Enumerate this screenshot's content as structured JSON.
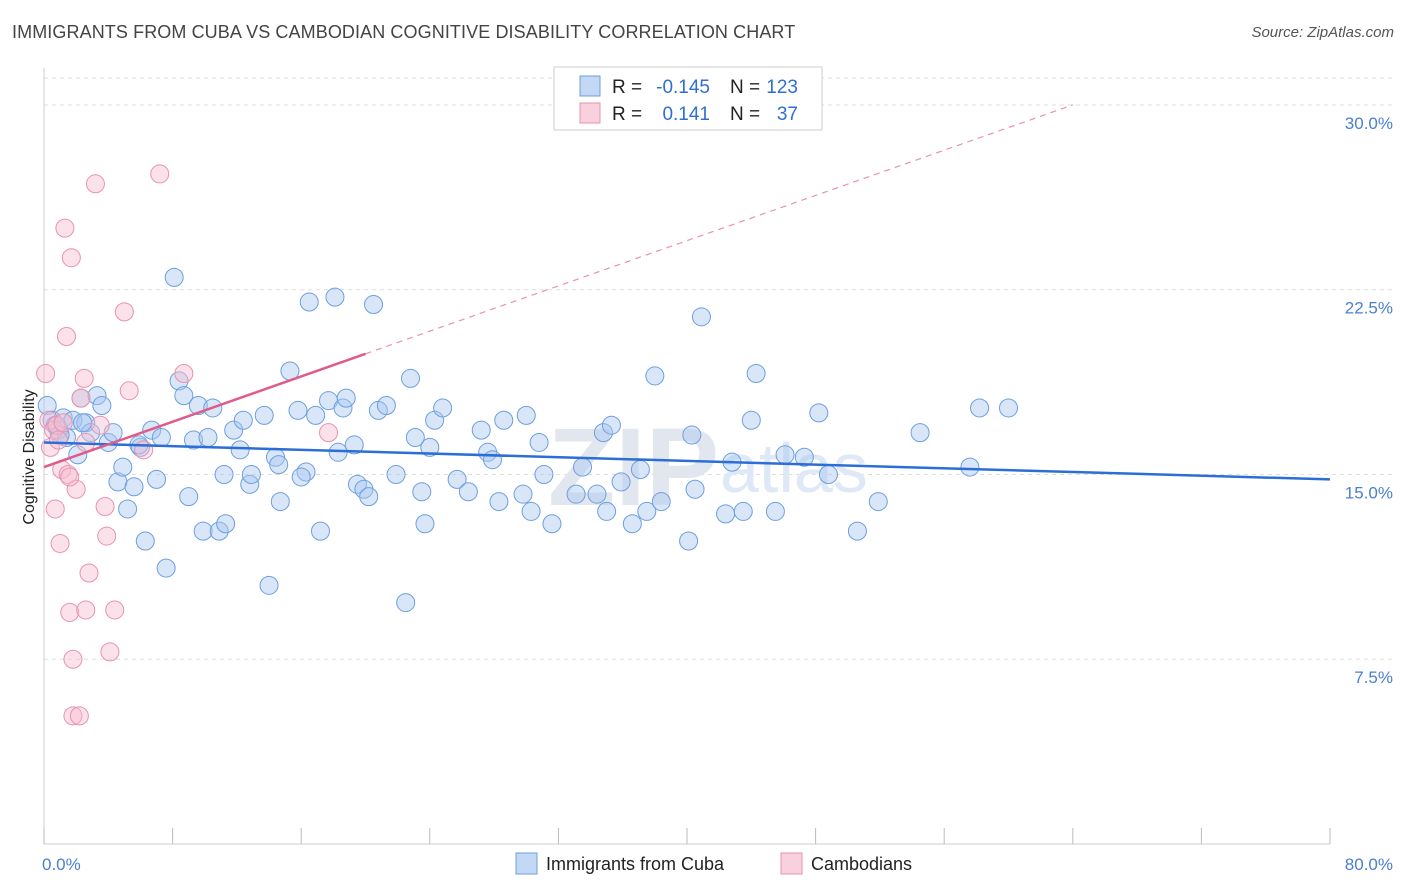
{
  "header": {
    "title": "IMMIGRANTS FROM CUBA VS CAMBODIAN COGNITIVE DISABILITY CORRELATION CHART",
    "source": "Source: ZipAtlas.com"
  },
  "watermark": {
    "zip": "ZIP",
    "atlas": "atlas"
  },
  "legend_box": {
    "rows": [
      {
        "r_label": "R =",
        "r_value": "-0.145",
        "n_label": "N =",
        "n_value": "123"
      },
      {
        "r_label": "R =",
        "r_value": "0.141",
        "n_label": "N =",
        "n_value": "37"
      }
    ]
  },
  "colors": {
    "cuba_fill": "#a8c8f0",
    "cuba_stroke": "#6d9fe0",
    "cuba_line": "#2b6fd6",
    "camb_fill": "#f6bed0",
    "camb_stroke": "#e892b0",
    "camb_line": "#e05a8a",
    "grid": "#dddddd",
    "axis_text": "#4a7fd0"
  },
  "chart_data": {
    "type": "scatter",
    "title": "IMMIGRANTS FROM CUBA VS CAMBODIAN COGNITIVE DISABILITY CORRELATION CHART",
    "xlabel": "",
    "ylabel": "Cognitive Disability",
    "xlim": [
      0,
      80
    ],
    "ylim": [
      0,
      31.5
    ],
    "x_tick_labels": [
      "0.0%",
      "80.0%"
    ],
    "y_ticks": [
      7.5,
      15.0,
      22.5,
      30.0
    ],
    "y_tick_labels": [
      "7.5%",
      "15.0%",
      "22.5%",
      "30.0%"
    ],
    "grid": true,
    "legend_position": "bottom",
    "series": [
      {
        "name": "Immigrants from Cuba",
        "R": -0.145,
        "N": 123,
        "trend": {
          "x": [
            0,
            80
          ],
          "y": [
            16.3,
            14.8
          ]
        },
        "points": [
          [
            0.2,
            17.8
          ],
          [
            0.5,
            17.2
          ],
          [
            0.7,
            17.0
          ],
          [
            0.9,
            16.8
          ],
          [
            1.2,
            17.3
          ],
          [
            1.4,
            16.5
          ],
          [
            1.8,
            17.2
          ],
          [
            2.1,
            15.8
          ],
          [
            2.3,
            18.1
          ],
          [
            2.6,
            17.1
          ],
          [
            2.9,
            16.7
          ],
          [
            3.3,
            18.2
          ],
          [
            3.6,
            17.8
          ],
          [
            4.0,
            16.3
          ],
          [
            4.3,
            16.7
          ],
          [
            4.6,
            14.7
          ],
          [
            4.9,
            15.3
          ],
          [
            5.2,
            13.6
          ],
          [
            5.6,
            14.5
          ],
          [
            6.0,
            16.1
          ],
          [
            6.3,
            12.3
          ],
          [
            6.7,
            16.8
          ],
          [
            7.0,
            14.8
          ],
          [
            7.3,
            16.5
          ],
          [
            7.6,
            11.2
          ],
          [
            8.1,
            23.0
          ],
          [
            8.4,
            18.8
          ],
          [
            8.7,
            18.2
          ],
          [
            9.0,
            14.1
          ],
          [
            9.3,
            16.4
          ],
          [
            9.6,
            17.8
          ],
          [
            9.9,
            12.7
          ],
          [
            10.2,
            16.5
          ],
          [
            10.5,
            17.7
          ],
          [
            10.9,
            12.7
          ],
          [
            11.2,
            15.0
          ],
          [
            11.3,
            13.0
          ],
          [
            11.8,
            16.8
          ],
          [
            12.2,
            16.0
          ],
          [
            12.4,
            17.2
          ],
          [
            12.8,
            14.6
          ],
          [
            12.9,
            15.0
          ],
          [
            13.7,
            17.4
          ],
          [
            14.0,
            10.5
          ],
          [
            14.4,
            15.7
          ],
          [
            14.6,
            15.4
          ],
          [
            14.7,
            13.9
          ],
          [
            15.3,
            19.2
          ],
          [
            15.8,
            17.6
          ],
          [
            16.3,
            15.1
          ],
          [
            16.5,
            22.0
          ],
          [
            16.9,
            17.4
          ],
          [
            17.2,
            12.7
          ],
          [
            17.7,
            18.0
          ],
          [
            18.1,
            22.2
          ],
          [
            18.3,
            15.9
          ],
          [
            18.6,
            17.7
          ],
          [
            18.8,
            18.1
          ],
          [
            19.3,
            16.2
          ],
          [
            19.5,
            14.6
          ],
          [
            19.9,
            14.4
          ],
          [
            20.2,
            14.1
          ],
          [
            20.5,
            21.9
          ],
          [
            20.8,
            17.6
          ],
          [
            21.3,
            17.8
          ],
          [
            21.9,
            15.0
          ],
          [
            22.5,
            9.8
          ],
          [
            22.8,
            18.9
          ],
          [
            23.1,
            16.5
          ],
          [
            23.5,
            14.3
          ],
          [
            23.7,
            13.0
          ],
          [
            24.0,
            16.1
          ],
          [
            24.3,
            17.2
          ],
          [
            24.8,
            17.7
          ],
          [
            25.7,
            14.8
          ],
          [
            26.4,
            14.3
          ],
          [
            27.2,
            16.8
          ],
          [
            27.6,
            15.9
          ],
          [
            28.3,
            13.9
          ],
          [
            28.6,
            17.2
          ],
          [
            29.8,
            14.2
          ],
          [
            30.0,
            17.4
          ],
          [
            30.3,
            13.5
          ],
          [
            30.8,
            16.3
          ],
          [
            31.1,
            15.0
          ],
          [
            31.6,
            13.0
          ],
          [
            33.1,
            14.2
          ],
          [
            33.5,
            15.3
          ],
          [
            34.4,
            14.2
          ],
          [
            34.8,
            16.7
          ],
          [
            35.0,
            13.5
          ],
          [
            35.3,
            17.0
          ],
          [
            35.9,
            14.7
          ],
          [
            36.6,
            13.0
          ],
          [
            37.1,
            15.2
          ],
          [
            37.5,
            13.5
          ],
          [
            38.0,
            19.0
          ],
          [
            38.4,
            13.9
          ],
          [
            40.1,
            12.3
          ],
          [
            40.3,
            16.6
          ],
          [
            40.5,
            14.4
          ],
          [
            42.4,
            13.4
          ],
          [
            42.8,
            15.5
          ],
          [
            43.5,
            13.5
          ],
          [
            44.0,
            17.2
          ],
          [
            44.3,
            19.1
          ],
          [
            45.5,
            13.5
          ],
          [
            46.1,
            15.8
          ],
          [
            47.3,
            15.7
          ],
          [
            48.2,
            17.5
          ],
          [
            48.8,
            15.0
          ],
          [
            50.6,
            12.7
          ],
          [
            51.9,
            13.9
          ],
          [
            54.5,
            16.7
          ],
          [
            57.6,
            15.3
          ],
          [
            58.2,
            17.7
          ],
          [
            60.0,
            17.7
          ],
          [
            40.9,
            21.4
          ],
          [
            16.0,
            14.9
          ],
          [
            27.9,
            15.6
          ],
          [
            5.9,
            16.2
          ],
          [
            2.4,
            17.1
          ],
          [
            1.0,
            16.6
          ]
        ]
      },
      {
        "name": "Cambodians",
        "R": 0.141,
        "N": 37,
        "trend": {
          "x": [
            0,
            20
          ],
          "y": [
            15.3,
            19.9
          ]
        },
        "extension": {
          "x": [
            20,
            64
          ],
          "y": [
            19.9,
            30.0
          ]
        },
        "points": [
          [
            0.1,
            19.1
          ],
          [
            0.3,
            17.2
          ],
          [
            0.4,
            16.1
          ],
          [
            0.6,
            16.8
          ],
          [
            0.7,
            13.6
          ],
          [
            0.8,
            17.0
          ],
          [
            1.0,
            12.2
          ],
          [
            1.1,
            15.2
          ],
          [
            1.3,
            25.0
          ],
          [
            1.4,
            20.6
          ],
          [
            1.5,
            15.0
          ],
          [
            1.6,
            9.4
          ],
          [
            1.7,
            23.8
          ],
          [
            1.8,
            7.5
          ],
          [
            1.8,
            5.2
          ],
          [
            2.0,
            14.4
          ],
          [
            2.2,
            5.2
          ],
          [
            2.3,
            18.1
          ],
          [
            2.5,
            18.9
          ],
          [
            2.6,
            9.5
          ],
          [
            2.8,
            11.0
          ],
          [
            3.2,
            26.8
          ],
          [
            3.5,
            17.0
          ],
          [
            3.8,
            13.7
          ],
          [
            3.9,
            12.5
          ],
          [
            4.1,
            7.8
          ],
          [
            4.4,
            9.5
          ],
          [
            5.0,
            21.6
          ],
          [
            5.3,
            18.4
          ],
          [
            6.2,
            16.0
          ],
          [
            7.2,
            27.2
          ],
          [
            8.7,
            19.1
          ],
          [
            17.7,
            16.7
          ],
          [
            1.2,
            17.1
          ],
          [
            0.9,
            16.4
          ],
          [
            1.6,
            14.9
          ],
          [
            2.6,
            16.3
          ]
        ]
      }
    ]
  },
  "bottom_legend": [
    {
      "label": "Immigrants from Cuba"
    },
    {
      "label": "Cambodians"
    }
  ]
}
